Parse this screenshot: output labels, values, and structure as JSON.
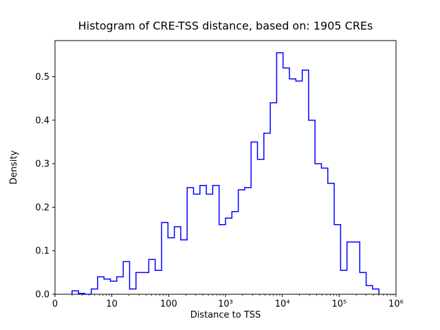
{
  "figure": {
    "title": "Histogram of CRE-TSS distance, based on: 1905 CREs",
    "xlabel": "Distance to TSS",
    "ylabel": "Density",
    "line_color": "#0000ff",
    "background_color": "#ffffff"
  },
  "chart_data": {
    "type": "bar",
    "subtype": "step-histogram",
    "title": "Histogram of CRE-TSS distance, based on: 1905 CREs",
    "xlabel": "Distance to TSS",
    "ylabel": "Density",
    "n_items": 1905,
    "x_scale": "log",
    "xlim_log10": [
      0,
      6
    ],
    "ylim": [
      0,
      0.583
    ],
    "grid": false,
    "legend": false,
    "xticks": [
      {
        "value_log10": 0,
        "label": "0"
      },
      {
        "value_log10": 1,
        "label": "10"
      },
      {
        "value_log10": 2,
        "label": "100"
      },
      {
        "value_log10": 3,
        "label": "10³"
      },
      {
        "value_log10": 4,
        "label": "10⁴"
      },
      {
        "value_log10": 5,
        "label": "10⁵"
      },
      {
        "value_log10": 6,
        "label": "10⁶"
      }
    ],
    "yticks": [
      {
        "value": 0.0,
        "label": "0.0"
      },
      {
        "value": 0.1,
        "label": "0.1"
      },
      {
        "value": 0.2,
        "label": "0.2"
      },
      {
        "value": 0.3,
        "label": "0.3"
      },
      {
        "value": 0.4,
        "label": "0.4"
      },
      {
        "value": 0.5,
        "label": "0.5"
      }
    ],
    "histogram": {
      "bin_start_log10": 0.3,
      "bin_width_log10": 0.1125,
      "densities": [
        0.008,
        0.002,
        0.0,
        0.012,
        0.04,
        0.035,
        0.03,
        0.04,
        0.075,
        0.012,
        0.05,
        0.05,
        0.08,
        0.055,
        0.165,
        0.13,
        0.155,
        0.125,
        0.245,
        0.23,
        0.25,
        0.23,
        0.25,
        0.16,
        0.175,
        0.19,
        0.24,
        0.245,
        0.35,
        0.31,
        0.37,
        0.44,
        0.555,
        0.52,
        0.495,
        0.49,
        0.515,
        0.4,
        0.3,
        0.29,
        0.255,
        0.16,
        0.055,
        0.12,
        0.12,
        0.05,
        0.02,
        0.012
      ]
    }
  }
}
